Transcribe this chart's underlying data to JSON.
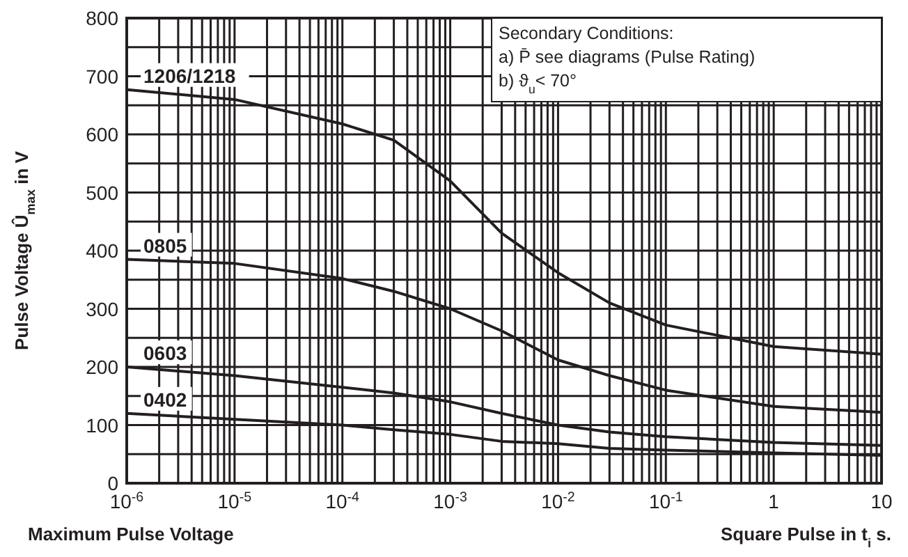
{
  "chart_data": {
    "type": "line",
    "title": "Maximum Pulse Voltage",
    "xlabel": "Square Pulse in t$_{i}$ s.",
    "ylabel": "Pulse Voltage Û$_{max}$ in V",
    "annotations": [
      "Secondary Conditions:",
      "a) P̄ see diagrams (Pulse Rating)",
      "b) ϑ$_{u}$< 70°"
    ],
    "x": [
      1e-06,
      1e-05,
      0.0001,
      0.0003,
      0.001,
      0.003,
      0.01,
      0.03,
      0.1,
      1,
      10
    ],
    "series": [
      {
        "name": "1206/1218",
        "color": "#231f20",
        "values": [
          677,
          660,
          618,
          590,
          520,
          430,
          362,
          310,
          272,
          235,
          222
        ]
      },
      {
        "name": "0805",
        "color": "#231f20",
        "values": [
          385,
          378,
          352,
          330,
          300,
          262,
          212,
          185,
          160,
          132,
          122
        ]
      },
      {
        "name": "0603",
        "color": "#231f20",
        "values": [
          200,
          185,
          165,
          155,
          140,
          120,
          100,
          88,
          80,
          70,
          65
        ]
      },
      {
        "name": "0402",
        "color": "#231f20",
        "values": [
          120,
          110,
          100,
          92,
          84,
          72,
          68,
          60,
          57,
          52,
          48
        ]
      }
    ],
    "xlim": [
      1e-06,
      10
    ],
    "ylim": [
      0,
      800
    ],
    "xticks": [
      {
        "value": 1e-06,
        "label": "10$^{-6}$"
      },
      {
        "value": 1e-05,
        "label": "10$^{-5}$"
      },
      {
        "value": 0.0001,
        "label": "10$^{-4}$"
      },
      {
        "value": 0.001,
        "label": "10$^{-3}$"
      },
      {
        "value": 0.01,
        "label": "10$^{-2}$"
      },
      {
        "value": 0.1,
        "label": "10$^{-1}$"
      },
      1,
      10
    ],
    "yticks": [
      0,
      100,
      200,
      300,
      400,
      500,
      600,
      700,
      800
    ],
    "log": "x",
    "grid": true,
    "line_style": "solid"
  }
}
